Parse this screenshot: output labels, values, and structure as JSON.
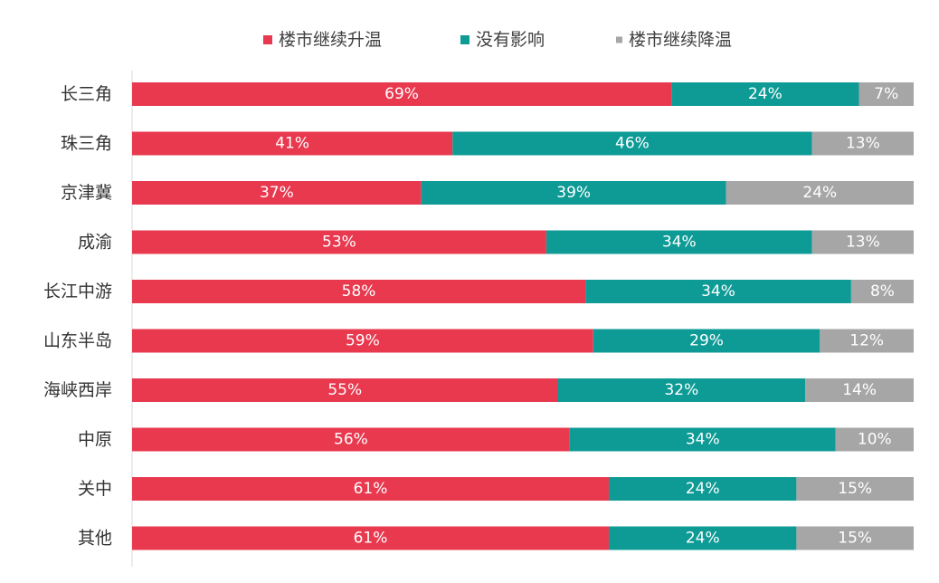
{
  "chart_data": {
    "type": "bar",
    "orientation": "horizontal",
    "stacked": true,
    "percent_stacked": true,
    "legend_position": "top",
    "grid": false,
    "xlim": [
      0,
      100
    ],
    "categories": [
      "长三角",
      "珠三角",
      "京津冀",
      "成渝",
      "长江中游",
      "山东半岛",
      "海峡西岸",
      "中原",
      "关中",
      "其他"
    ],
    "series": [
      {
        "name": "楼市继续升温",
        "color": "#E8394F",
        "values": [
          69,
          41,
          37,
          53,
          58,
          59,
          55,
          56,
          61,
          61
        ],
        "labels": [
          "69%",
          "41%",
          "37%",
          "53%",
          "58%",
          "59%",
          "55%",
          "56%",
          "61%",
          "61%"
        ]
      },
      {
        "name": "没有影响",
        "color": "#0E9B96",
        "values": [
          24,
          46,
          39,
          34,
          34,
          29,
          32,
          34,
          24,
          24
        ],
        "labels": [
          "24%",
          "46%",
          "39%",
          "34%",
          "34%",
          "29%",
          "32%",
          "34%",
          "24%",
          "24%"
        ]
      },
      {
        "name": "楼市继续降温",
        "color": "#A6A6A6",
        "values": [
          7,
          13,
          24,
          13,
          8,
          12,
          14,
          10,
          15,
          15
        ],
        "labels": [
          "7%",
          "13%",
          "24%",
          "13%",
          "8%",
          "12%",
          "14%",
          "10%",
          "15%",
          "15%"
        ]
      }
    ]
  }
}
